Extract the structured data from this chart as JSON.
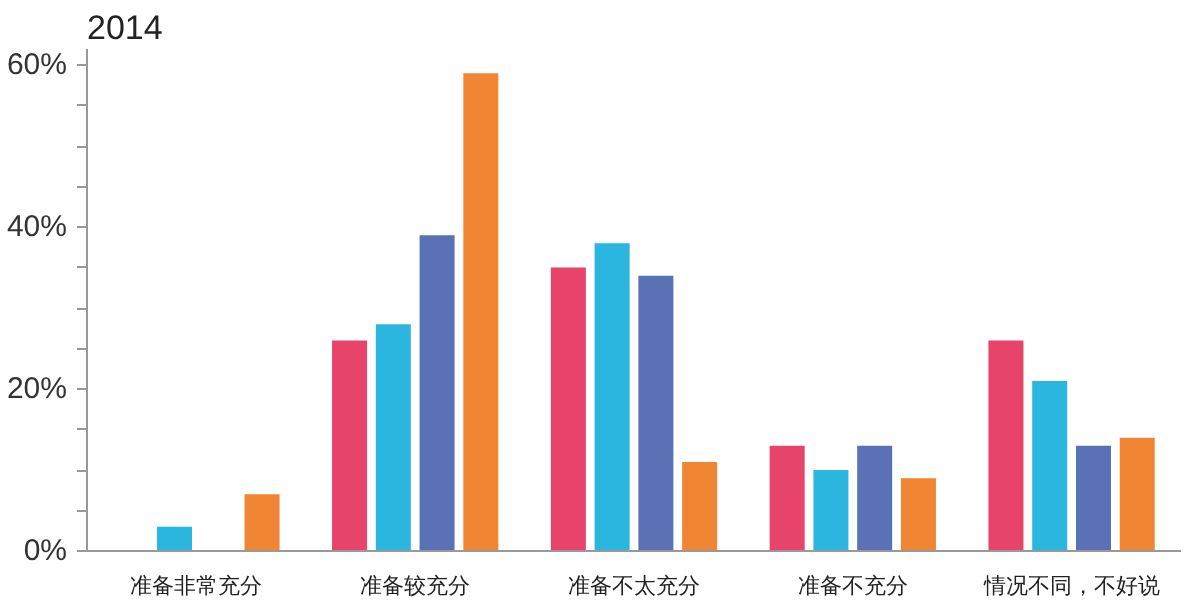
{
  "chart_data": {
    "type": "bar",
    "title": "2014",
    "categories": [
      "准备非常充分",
      "准备较充分",
      "准备不太充分",
      "准备不充分",
      "情况不同，不好说"
    ],
    "series": [
      {
        "color": "#e8436b",
        "values": [
          0,
          26,
          35,
          13,
          26
        ]
      },
      {
        "color": "#2bb6e0",
        "values": [
          3,
          28,
          38,
          10,
          21
        ]
      },
      {
        "color": "#5a71b5",
        "values": [
          0,
          39,
          34,
          13,
          13
        ]
      },
      {
        "color": "#f08533",
        "values": [
          7,
          59,
          11,
          9,
          14
        ]
      }
    ],
    "ylim": [
      0,
      62
    ],
    "yticks": [
      {
        "value": 0,
        "label": "0%"
      },
      {
        "value": 5,
        "label": null
      },
      {
        "value": 10,
        "label": null
      },
      {
        "value": 15,
        "label": null
      },
      {
        "value": 20,
        "label": "20%"
      },
      {
        "value": 25,
        "label": null
      },
      {
        "value": 30,
        "label": null
      },
      {
        "value": 35,
        "label": null
      },
      {
        "value": 40,
        "label": "40%"
      },
      {
        "value": 45,
        "label": null
      },
      {
        "value": 50,
        "label": null
      },
      {
        "value": 55,
        "label": null
      },
      {
        "value": 60,
        "label": "60%"
      }
    ],
    "grid": false
  }
}
